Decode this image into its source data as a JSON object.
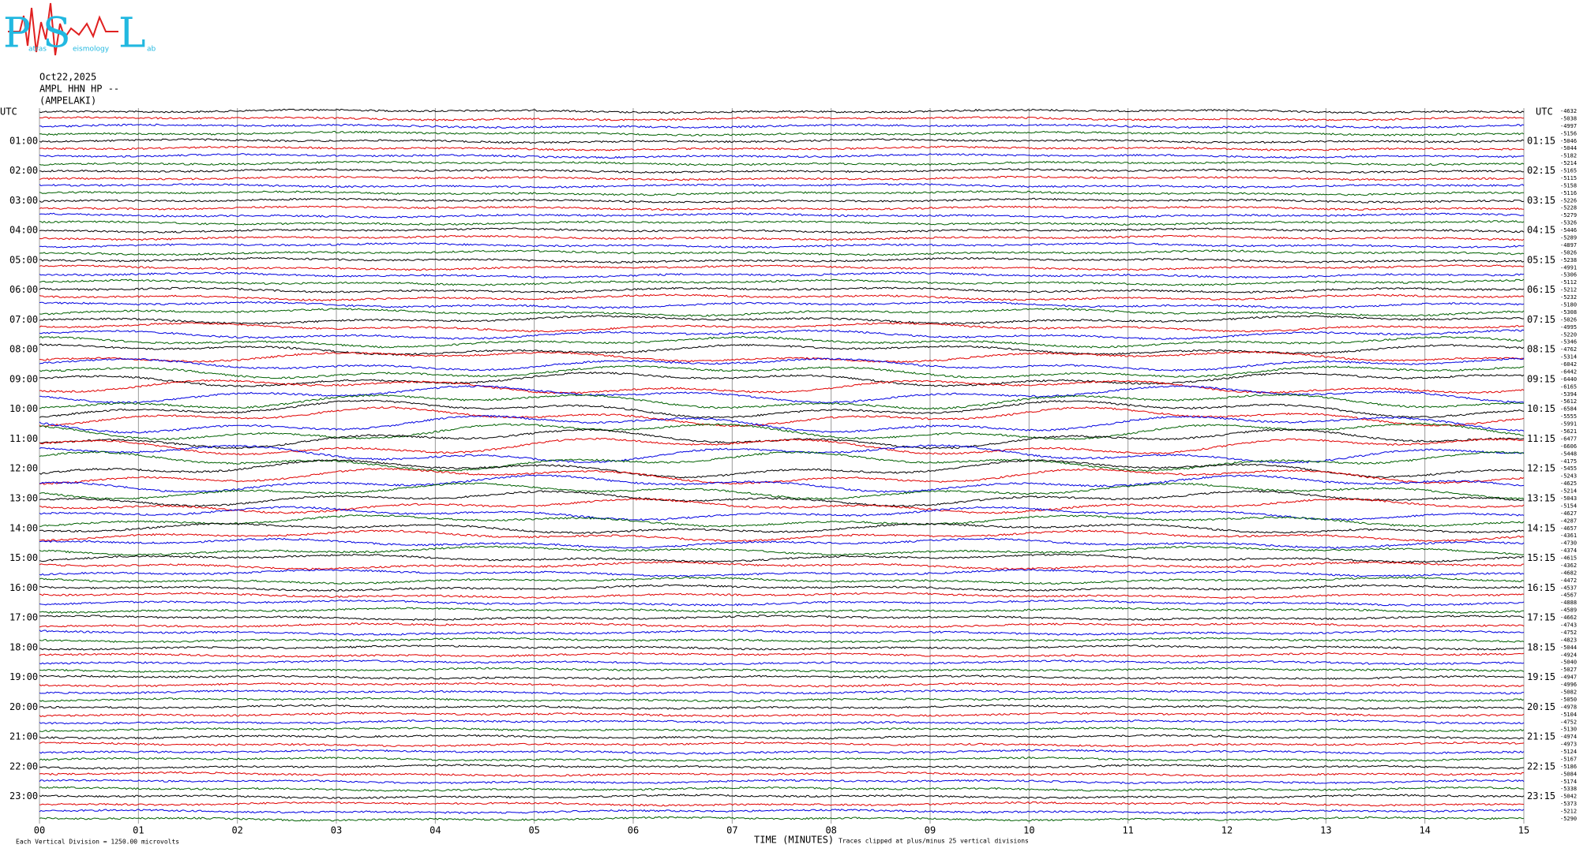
{
  "chart_data": {
    "type": "helicorder",
    "logo": {
      "big": [
        "P",
        "S",
        "L"
      ],
      "small": [
        "atras",
        "eismology",
        "ab"
      ]
    },
    "date": "Oct22,2025",
    "station": "AMPL HHN HP --",
    "location": "(AMPELAKI)",
    "left_header": "UTC",
    "right_header": "UTC",
    "hour_labels": [
      "01:00",
      "02:00",
      "03:00",
      "04:00",
      "05:00",
      "06:00",
      "07:00",
      "08:00",
      "09:00",
      "10:00",
      "11:00",
      "12:00",
      "13:00",
      "14:00",
      "15:00",
      "16:00",
      "17:00",
      "18:00",
      "19:00",
      "20:00",
      "21:00",
      "22:00",
      "23:00"
    ],
    "right_hour_labels": [
      "01:15",
      "02:15",
      "03:15",
      "04:15",
      "05:15",
      "06:15",
      "07:15",
      "08:15",
      "09:15",
      "10:15",
      "11:15",
      "12:15",
      "13:15",
      "14:15",
      "15:15",
      "16:15",
      "17:15",
      "18:15",
      "19:15",
      "20:15",
      "21:15",
      "22:15",
      "23:15"
    ],
    "row_offsets": [
      "-4632",
      "-5038",
      "-4997",
      "-5156",
      "-5046",
      "-5044",
      "-5182",
      "-5214",
      "-5165",
      "-5115",
      "-5158",
      "-5116",
      "-5226",
      "-5228",
      "-5279",
      "-5326",
      "-5446",
      "-5289",
      "-4897",
      "-5026",
      "-5238",
      "-4991",
      "-5306",
      "-5112",
      "-5212",
      "-5232",
      "-5180",
      "-5308",
      "-5026",
      "-4995",
      "-5220",
      "-5346",
      "-4762",
      "-5314",
      "-6042",
      "-6442",
      "-6440",
      "-6165",
      "-5394",
      "-5612",
      "-6584",
      "-5555",
      "-5991",
      "-5621",
      "-6477",
      "-6606",
      "-5448",
      "-4175",
      "-5455",
      "-5243",
      "-4625",
      "-5214",
      "-5043",
      "-5154",
      "-4627",
      "-4287",
      "-4657",
      "-4361",
      "-4730",
      "-4374",
      "-4615",
      "-4362",
      "-4682",
      "-4472",
      "-4537",
      "-4567",
      "-4888",
      "-4589",
      "-4662",
      "-4743",
      "-4752",
      "-4823",
      "-5044",
      "-4924",
      "-5040",
      "-5027",
      "-4947",
      "-4996",
      "-5082",
      "-5050",
      "-4978",
      "-5104",
      "-4752",
      "-5130",
      "-4974",
      "-4973",
      "-5124",
      "-5167",
      "-5186",
      "-5084",
      "-5174",
      "-5338",
      "-5042",
      "-5373",
      "-5212",
      "-5290"
    ],
    "trace_colors": [
      "#000000",
      "#e00000",
      "#0000e0",
      "#006000"
    ],
    "xlim": [
      0,
      15
    ],
    "xticks": [
      {
        "value": 0,
        "label": "00"
      },
      {
        "value": 1,
        "label": "01"
      },
      {
        "value": 2,
        "label": "02"
      },
      {
        "value": 3,
        "label": "03"
      },
      {
        "value": 4,
        "label": "04"
      },
      {
        "value": 5,
        "label": "05"
      },
      {
        "value": 6,
        "label": "06"
      },
      {
        "value": 7,
        "label": "07"
      },
      {
        "value": 8,
        "label": "08"
      },
      {
        "value": 9,
        "label": "09"
      },
      {
        "value": 10,
        "label": "10"
      },
      {
        "value": 11,
        "label": "11"
      },
      {
        "value": 12,
        "label": "12"
      },
      {
        "value": 13,
        "label": "13"
      },
      {
        "value": 14,
        "label": "14"
      },
      {
        "value": 15,
        "label": "15"
      }
    ],
    "grid": true,
    "xlabel": "TIME (MINUTES)",
    "note_left": "Each Vertical Division = 1250.00 microvolts",
    "note_right": "Traces clipped at plus/minus 25 vertical divisions"
  }
}
